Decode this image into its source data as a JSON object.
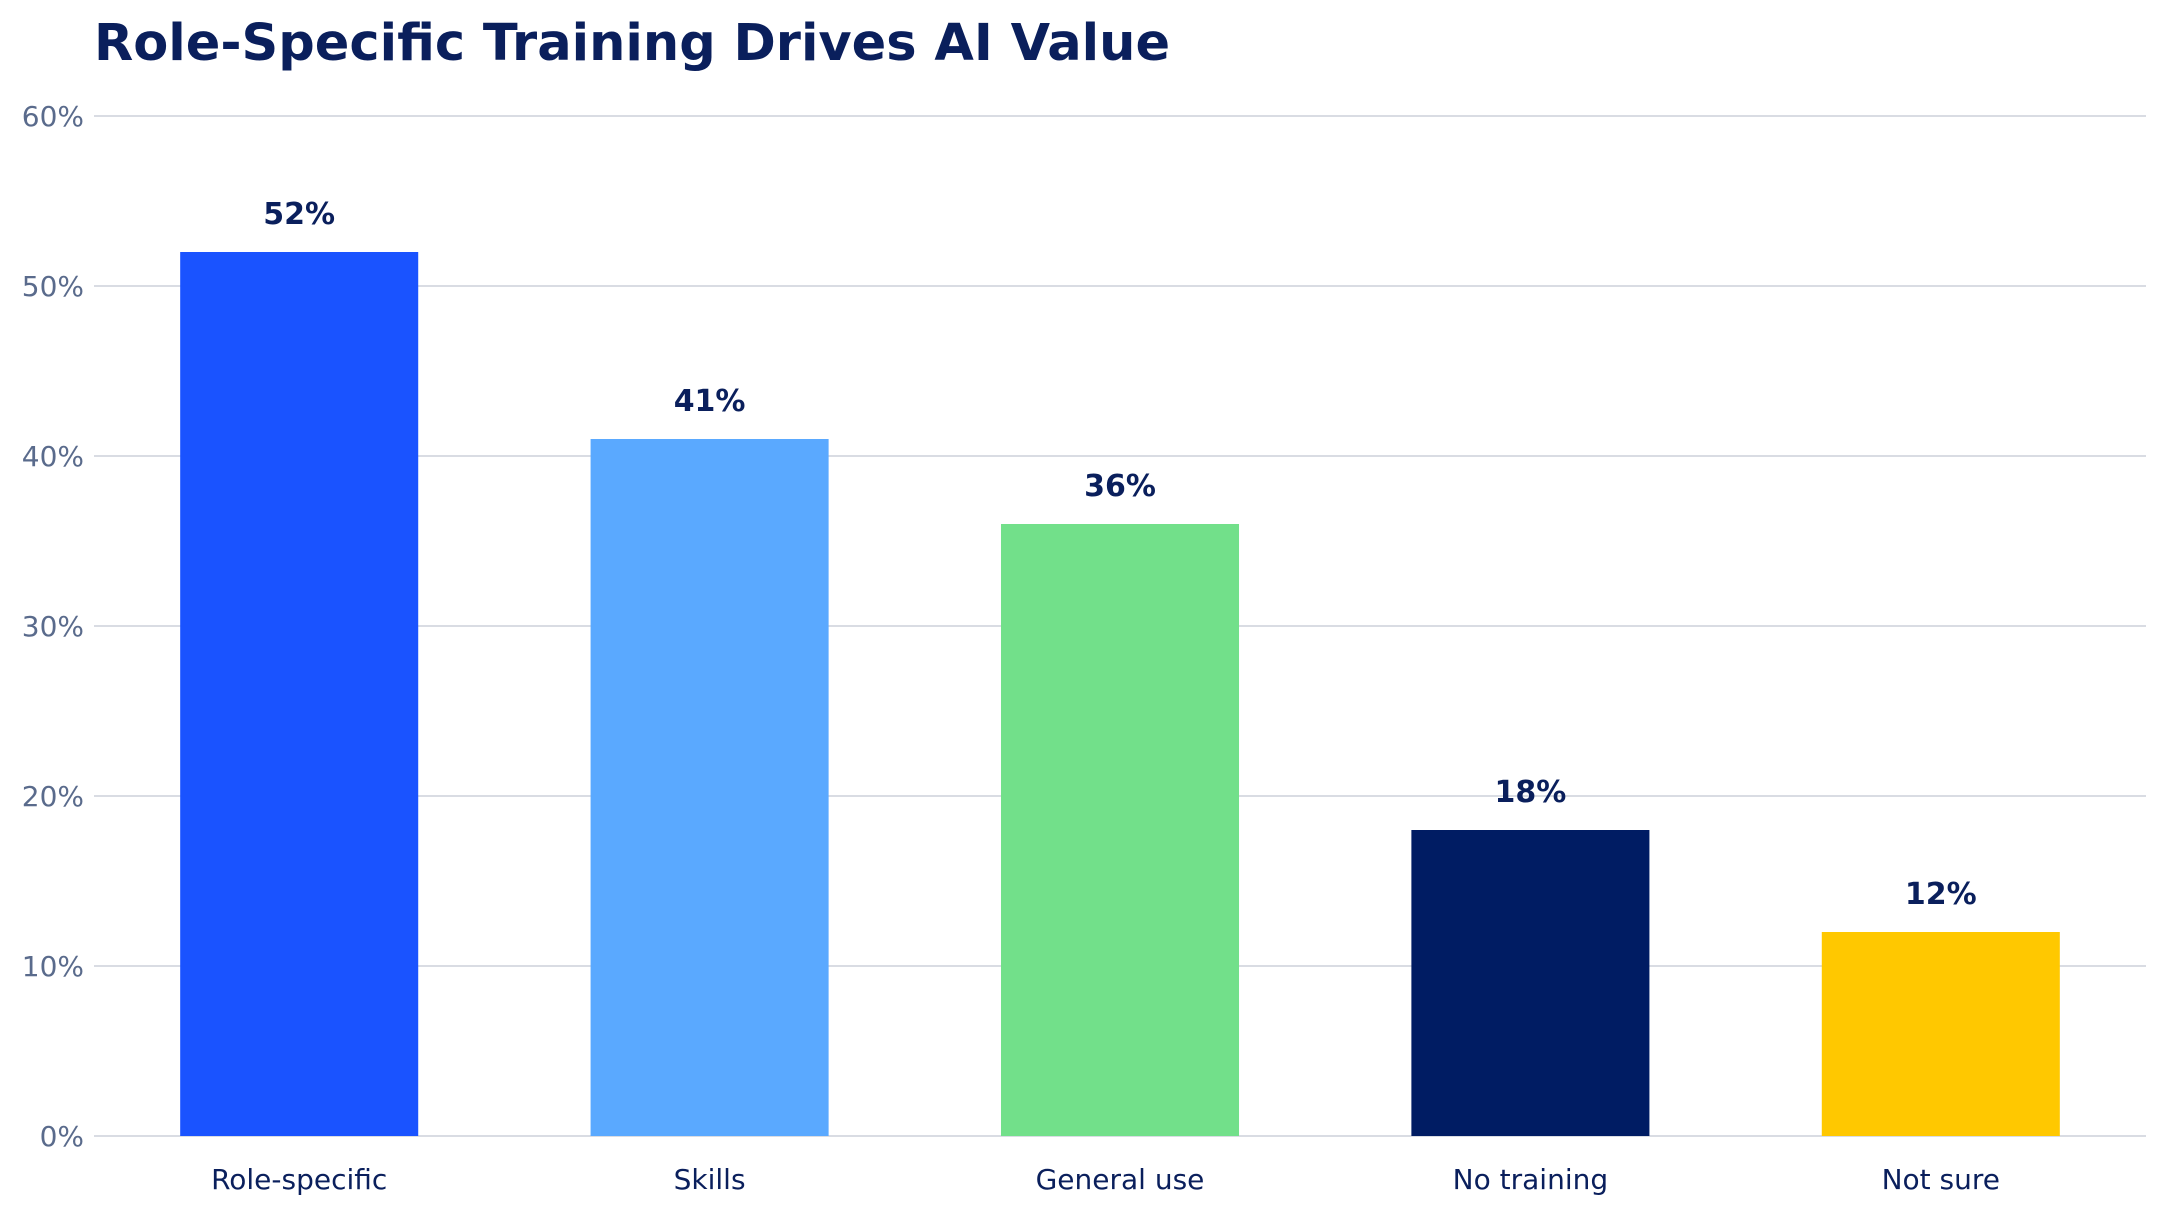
{
  "chart_data": {
    "type": "bar",
    "title": "Role-Specific Training Drives AI Value",
    "xlabel": "",
    "ylabel": "",
    "ylim": [
      0,
      60
    ],
    "yticks": [
      0,
      10,
      20,
      30,
      40,
      50,
      60
    ],
    "ytick_format": "%",
    "grid": true,
    "legend": "none",
    "categories": [
      "Role-specific",
      "Skills",
      "General use",
      "No training",
      "Not sure"
    ],
    "values": [
      52,
      41,
      36,
      18,
      12
    ],
    "data_labels": [
      "52%",
      "41%",
      "36%",
      "18%",
      "12%"
    ],
    "colors": [
      "#1a53ff",
      "#5aa9ff",
      "#72e08a",
      "#001c63",
      "#ffc800"
    ]
  }
}
